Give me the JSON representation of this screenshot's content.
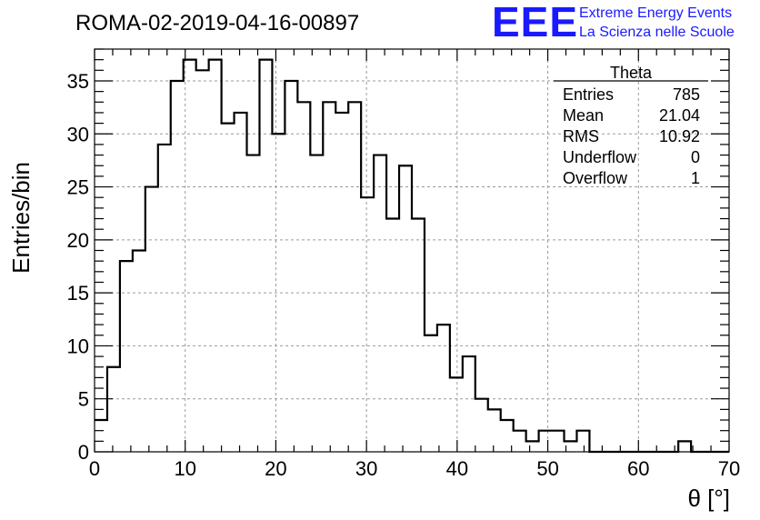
{
  "title": "ROMA-02-2019-04-16-00897",
  "logo": {
    "letters": "EEE",
    "line1": "Extreme Energy Events",
    "line2": "La Scienza nelle Scuole",
    "color": "#1a1aff"
  },
  "stats_box": {
    "name": "Theta",
    "rows": [
      {
        "label": "Entries",
        "value": "785"
      },
      {
        "label": "Mean",
        "value": "21.04"
      },
      {
        "label": "RMS",
        "value": "10.92"
      },
      {
        "label": "Underflow",
        "value": "0"
      },
      {
        "label": "Overflow",
        "value": "1"
      }
    ]
  },
  "chart_data": {
    "type": "bar",
    "style": "step-histogram",
    "xlabel": "θ [°]",
    "ylabel": "Entries/bin",
    "xlim": [
      0,
      70
    ],
    "ylim": [
      0,
      38
    ],
    "xticks": [
      0,
      10,
      20,
      30,
      40,
      50,
      60,
      70
    ],
    "yticks": [
      0,
      5,
      10,
      15,
      20,
      25,
      30,
      35
    ],
    "grid": true,
    "bin_width": 1.4,
    "bin_edges_start": 0,
    "values": [
      3,
      8,
      18,
      19,
      25,
      29,
      35,
      37,
      36,
      37,
      31,
      32,
      28,
      37,
      30,
      35,
      33,
      28,
      33,
      32,
      33,
      24,
      28,
      22,
      27,
      22,
      11,
      12,
      7,
      9,
      5,
      4,
      3,
      2,
      1,
      2,
      2,
      1,
      2,
      0,
      0,
      0,
      0,
      0,
      0,
      0,
      1,
      0,
      0,
      0
    ],
    "line_color": "#000000"
  }
}
